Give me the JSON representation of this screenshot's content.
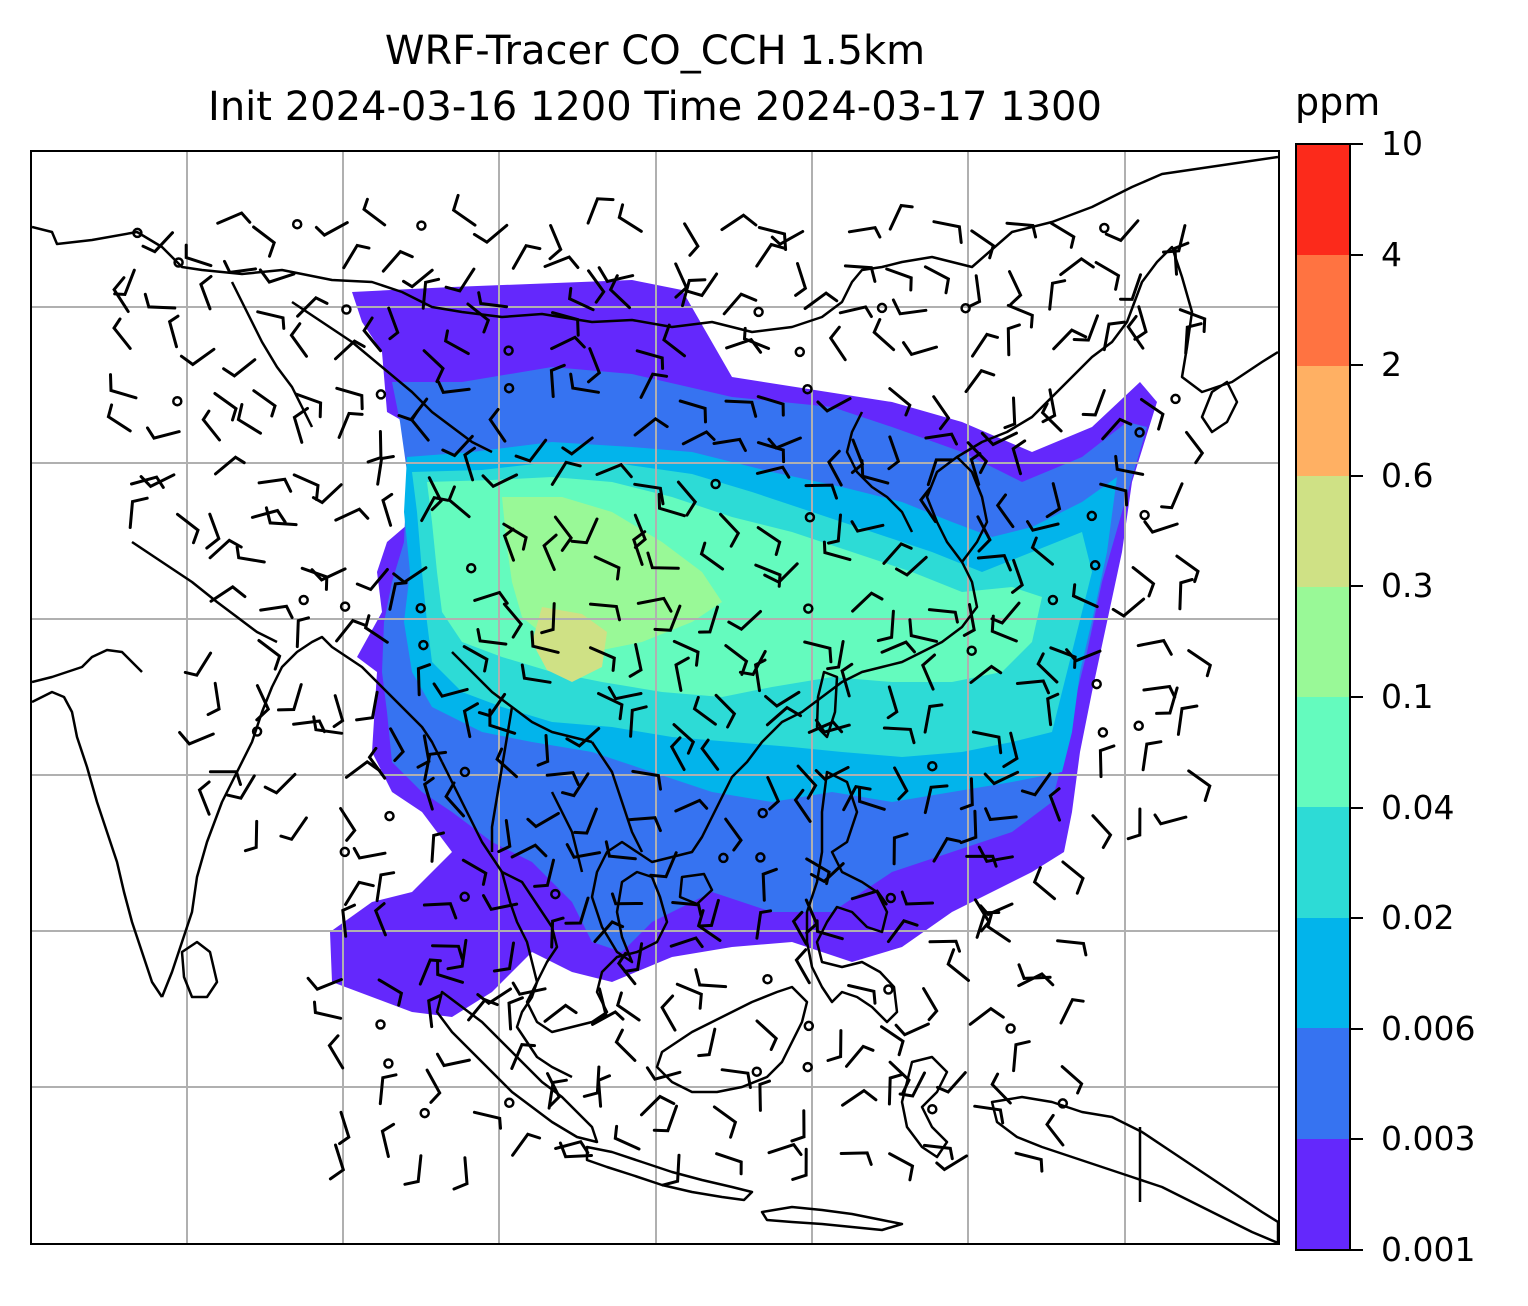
{
  "title": {
    "line1": "WRF-Tracer CO_CCH 1.5km",
    "line2": "Init 2024-03-16 1200 Time 2024-03-17 1300"
  },
  "colorbar": {
    "unit": "ppm",
    "ticks": [
      "0.001",
      "0.003",
      "0.006",
      "0.02",
      "0.04",
      "0.1",
      "0.3",
      "0.6",
      "2",
      "4",
      "10"
    ],
    "colors": [
      "#6428fc",
      "#3673f1",
      "#02b4eb",
      "#2ddbd6",
      "#64fbbe",
      "#99f997",
      "#cfe185",
      "#ffb063",
      "#ff7341",
      "#fc2a1b"
    ]
  },
  "map": {
    "gridlines": true,
    "gridline_color": "#b0b0b0",
    "coastline_color": "#000000"
  }
}
